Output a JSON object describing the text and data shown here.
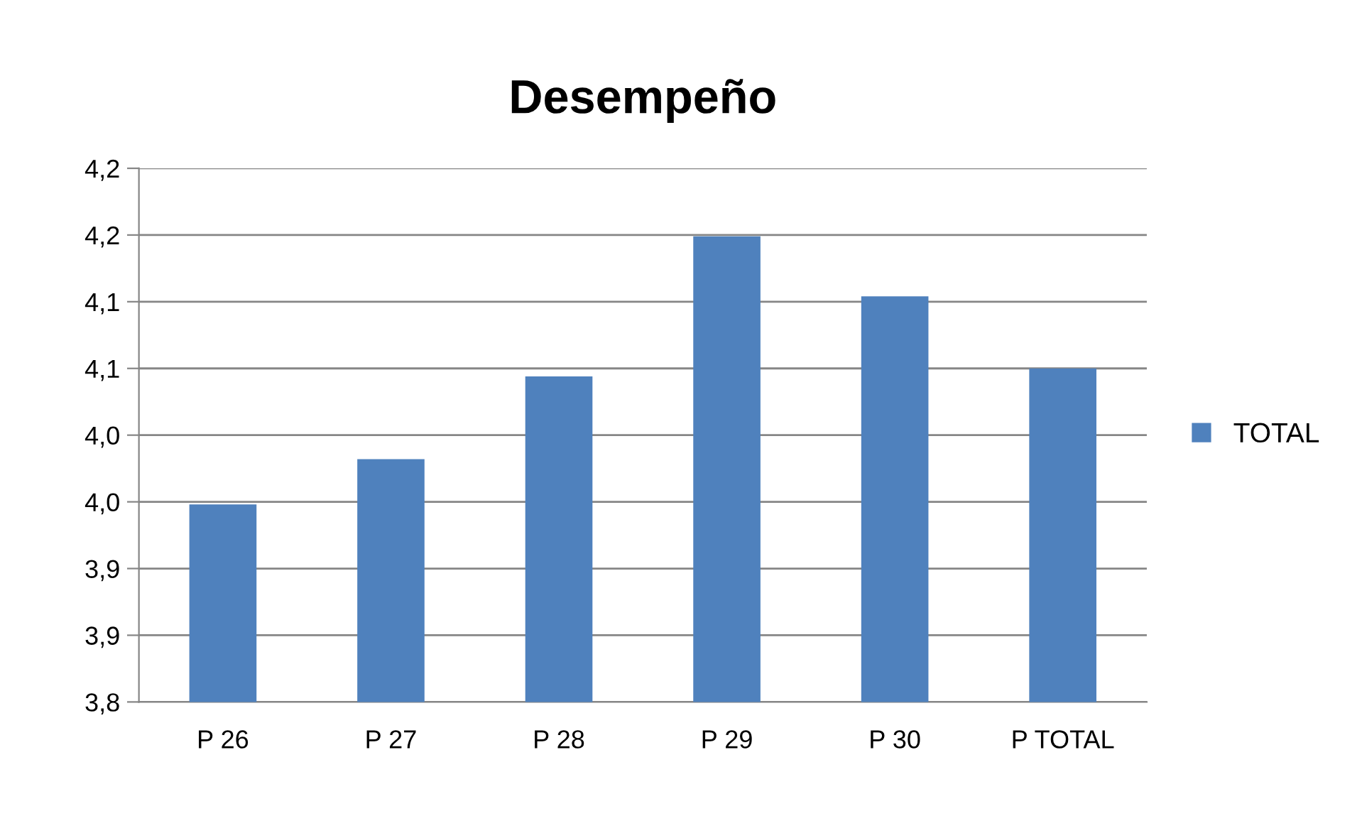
{
  "chart_data": {
    "type": "bar",
    "title": "Desempeño",
    "categories": [
      "P 26",
      "P 27",
      "P 28",
      "P 29",
      "P 30",
      "P TOTAL"
    ],
    "series": [
      {
        "name": "TOTAL",
        "color": "#4f81bd",
        "values": [
          3.948,
          3.982,
          4.044,
          4.149,
          4.104,
          4.05
        ]
      }
    ],
    "ylim": [
      3.8,
      4.2
    ],
    "yticks": [
      {
        "value": 3.8,
        "label": "3,8"
      },
      {
        "value": 3.85,
        "label": "3,9"
      },
      {
        "value": 3.9,
        "label": "3,9"
      },
      {
        "value": 3.95,
        "label": "4,0"
      },
      {
        "value": 4.0,
        "label": "4,0"
      },
      {
        "value": 4.05,
        "label": "4,1"
      },
      {
        "value": 4.1,
        "label": "4,1"
      },
      {
        "value": 4.15,
        "label": "4,2"
      },
      {
        "value": 4.2,
        "label": "4,2"
      }
    ],
    "grid": "y",
    "legend": "right"
  }
}
